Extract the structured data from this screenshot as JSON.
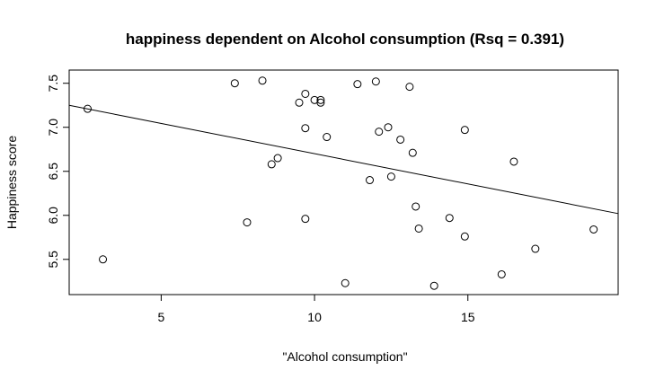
{
  "chart_data": {
    "type": "scatter",
    "title": "happiness dependent on Alcohol consumption (Rsq = 0.391)",
    "xlabel": "\"Alcohol consumption\"",
    "ylabel": "Happiness score",
    "xlim": [
      2.0,
      19.9
    ],
    "ylim": [
      5.1,
      7.65
    ],
    "x_ticks": [
      5,
      10,
      15
    ],
    "x_tick_labels": [
      "5",
      "10",
      "15"
    ],
    "y_ticks": [
      5.5,
      6.0,
      6.5,
      7.0,
      7.5
    ],
    "y_tick_labels": [
      "5.5",
      "6.0",
      "6.5",
      "7.0",
      "7.5"
    ],
    "grid": false,
    "legend": "none",
    "regression_line": {
      "x": [
        2.0,
        19.9
      ],
      "y": [
        7.25,
        6.02
      ]
    },
    "points": [
      {
        "x": 2.6,
        "y": 7.21
      },
      {
        "x": 3.1,
        "y": 5.5
      },
      {
        "x": 7.4,
        "y": 7.5
      },
      {
        "x": 7.8,
        "y": 5.92
      },
      {
        "x": 8.3,
        "y": 7.53
      },
      {
        "x": 8.6,
        "y": 6.58
      },
      {
        "x": 8.8,
        "y": 6.65
      },
      {
        "x": 9.5,
        "y": 7.28
      },
      {
        "x": 9.7,
        "y": 6.99
      },
      {
        "x": 9.7,
        "y": 5.96
      },
      {
        "x": 9.7,
        "y": 7.38
      },
      {
        "x": 10.0,
        "y": 7.31
      },
      {
        "x": 10.2,
        "y": 7.31
      },
      {
        "x": 10.2,
        "y": 7.28
      },
      {
        "x": 10.4,
        "y": 6.89
      },
      {
        "x": 11.0,
        "y": 5.23
      },
      {
        "x": 11.4,
        "y": 7.49
      },
      {
        "x": 11.8,
        "y": 6.4
      },
      {
        "x": 12.0,
        "y": 7.52
      },
      {
        "x": 12.1,
        "y": 6.95
      },
      {
        "x": 12.4,
        "y": 7.0
      },
      {
        "x": 12.5,
        "y": 6.44
      },
      {
        "x": 12.8,
        "y": 6.86
      },
      {
        "x": 13.1,
        "y": 7.46
      },
      {
        "x": 13.2,
        "y": 6.71
      },
      {
        "x": 13.3,
        "y": 6.1
      },
      {
        "x": 13.4,
        "y": 5.85
      },
      {
        "x": 13.9,
        "y": 5.2
      },
      {
        "x": 14.4,
        "y": 5.97
      },
      {
        "x": 14.9,
        "y": 6.97
      },
      {
        "x": 14.9,
        "y": 5.76
      },
      {
        "x": 16.1,
        "y": 5.33
      },
      {
        "x": 16.5,
        "y": 6.61
      },
      {
        "x": 17.2,
        "y": 5.62
      },
      {
        "x": 19.1,
        "y": 5.84
      }
    ]
  }
}
